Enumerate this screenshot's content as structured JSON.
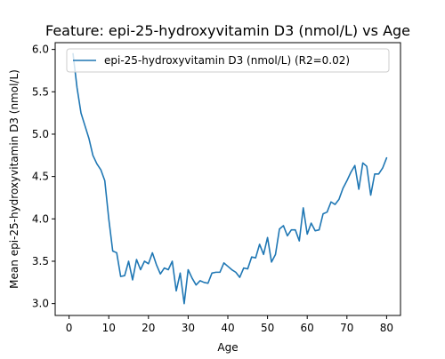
{
  "chart_data": {
    "type": "line",
    "title": "Feature: epi-25-hydroxyvitamin D3 (nmol/L) vs Age",
    "xlabel": "Age",
    "ylabel": "Mean epi-25-hydroxyvitamin D3 (nmol/L)",
    "xlim": [
      -3.5,
      83.5
    ],
    "ylim": [
      2.86,
      6.08
    ],
    "xticks": [
      0,
      10,
      20,
      30,
      40,
      50,
      60,
      70,
      80
    ],
    "yticks": [
      3.0,
      3.5,
      4.0,
      4.5,
      5.0,
      5.5,
      6.0
    ],
    "xtick_labels": [
      "0",
      "10",
      "20",
      "30",
      "40",
      "50",
      "60",
      "70",
      "80"
    ],
    "ytick_labels": [
      "3.0",
      "3.5",
      "4.0",
      "4.5",
      "5.0",
      "5.5",
      "6.0"
    ],
    "grid": false,
    "legend_position": "top-left",
    "series": [
      {
        "name": "epi-25-hydroxyvitamin D3 (nmol/L) (R2=0.02)",
        "color": "#1f77b4",
        "x": [
          1,
          2,
          3,
          4,
          5,
          6,
          7,
          8,
          9,
          10,
          11,
          12,
          13,
          14,
          15,
          16,
          17,
          18,
          19,
          20,
          21,
          22,
          23,
          24,
          25,
          26,
          27,
          28,
          29,
          30,
          31,
          32,
          33,
          34,
          35,
          36,
          37,
          38,
          39,
          40,
          41,
          42,
          43,
          44,
          45,
          46,
          47,
          48,
          49,
          50,
          51,
          52,
          53,
          54,
          55,
          56,
          57,
          58,
          59,
          60,
          61,
          62,
          63,
          64,
          65,
          66,
          67,
          68,
          69,
          70,
          71,
          72,
          73,
          74,
          75,
          76,
          77,
          78,
          79,
          80
        ],
        "y": [
          5.95,
          5.55,
          5.25,
          5.1,
          4.95,
          4.75,
          4.65,
          4.58,
          4.45,
          4.0,
          3.62,
          3.6,
          3.32,
          3.33,
          3.5,
          3.28,
          3.52,
          3.4,
          3.5,
          3.47,
          3.6,
          3.46,
          3.35,
          3.42,
          3.4,
          3.5,
          3.15,
          3.36,
          3.0,
          3.4,
          3.3,
          3.22,
          3.27,
          3.25,
          3.24,
          3.36,
          3.37,
          3.37,
          3.48,
          3.44,
          3.4,
          3.37,
          3.31,
          3.42,
          3.41,
          3.55,
          3.54,
          3.7,
          3.58,
          3.78,
          3.49,
          3.58,
          3.88,
          3.92,
          3.8,
          3.87,
          3.87,
          3.74,
          4.13,
          3.82,
          3.95,
          3.86,
          3.87,
          4.06,
          4.08,
          4.2,
          4.17,
          4.23,
          4.36,
          4.45,
          4.55,
          4.63,
          4.35,
          4.66,
          4.62,
          4.28,
          4.53,
          4.53,
          4.6,
          4.72
        ]
      }
    ]
  }
}
